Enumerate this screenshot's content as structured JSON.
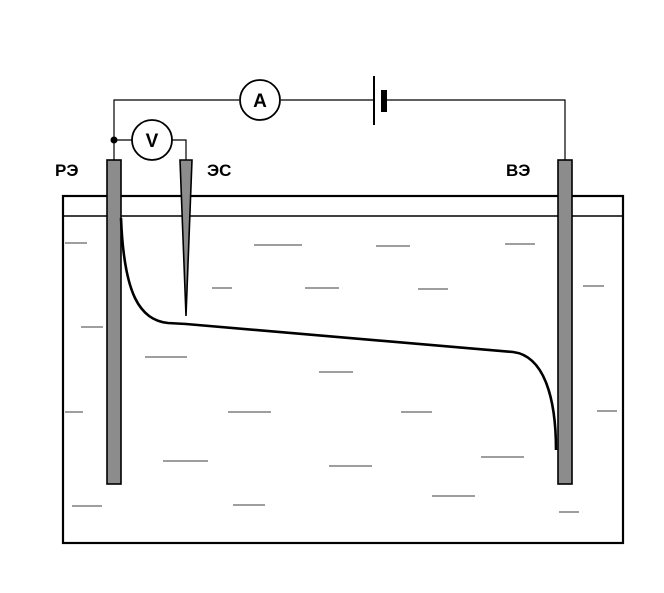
{
  "labels": {
    "working_electrode": "РЭ",
    "reference_electrode": "ЭС",
    "counter_electrode": "ВЭ",
    "ammeter": "A",
    "voltmeter": "V"
  },
  "colors": {
    "line": "#000000",
    "electrode_fill": "#8c8c8c",
    "liquid_dash": "#7f7f7f",
    "background": "#ffffff"
  }
}
